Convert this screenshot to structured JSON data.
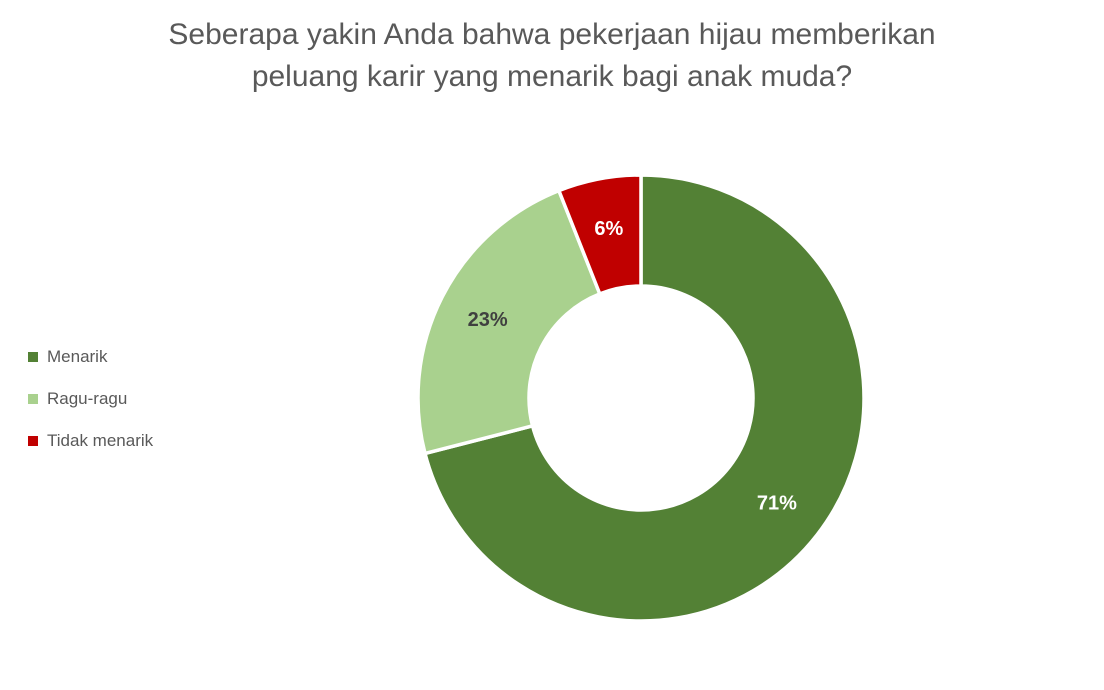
{
  "title": {
    "text": "Seberapa yakin Anda bahwa pekerjaan hijau memberikan peluang karir yang menarik bagi anak muda?",
    "lines": [
      "Seberapa yakin Anda bahwa pekerjaan hijau memberikan",
      "peluang karir yang menarik bagi anak muda?"
    ],
    "color": "#595959"
  },
  "legend": {
    "position": "left",
    "items": [
      {
        "label": "Menarik",
        "color": "#538135"
      },
      {
        "label": "Ragu-ragu",
        "color": "#a9d18e"
      },
      {
        "label": "Tidak menarik",
        "color": "#c00000"
      }
    ]
  },
  "chart_data": {
    "type": "pie",
    "subtype": "doughnut",
    "title": "Seberapa yakin Anda bahwa pekerjaan hijau memberikan peluang karir yang menarik bagi anak muda?",
    "categories": [
      "Menarik",
      "Ragu-ragu",
      "Tidak menarik"
    ],
    "values": [
      71,
      23,
      6
    ],
    "unit": "%",
    "data_labels": [
      "71%",
      "23%",
      "6%"
    ],
    "colors": [
      "#538135",
      "#a9d18e",
      "#c00000"
    ],
    "data_label_colors": [
      "#ffffff",
      "#404040",
      "#ffffff"
    ],
    "slice_border_color": "#ffffff",
    "start_angle_deg": 0,
    "direction": "clockwise",
    "hole_ratio": 0.5,
    "legend_position": "left",
    "grid": false
  }
}
